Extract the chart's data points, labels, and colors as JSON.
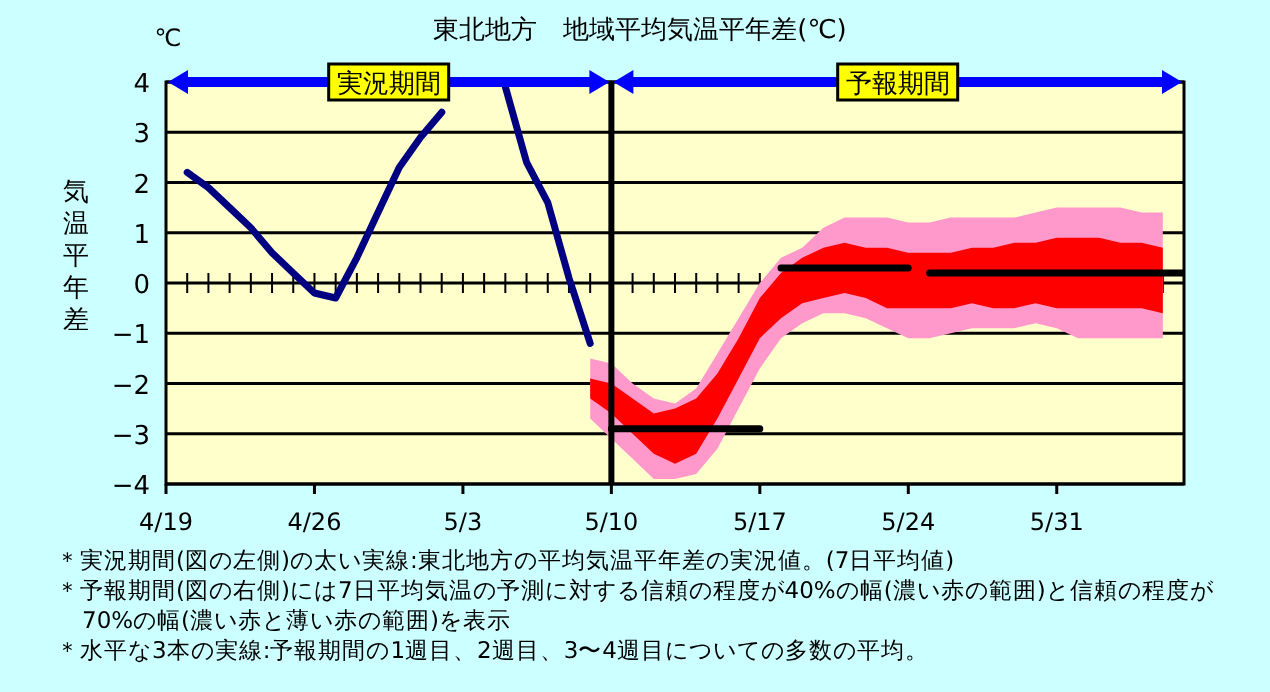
{
  "chart_data": {
    "type": "line",
    "title": "東北地方　地域平均気温平年差(℃)",
    "ylabel": "気温平年差",
    "annotations": [
      "℃",
      "実況期間",
      "予報期間",
      "＊実況期間(図の左側)の太い実線:東北地方の平均気温平年差の実況値。(7日平均値)",
      "＊予報期間(図の右側)には7日平均気温の予測に対する信頼の程度が40%の幅(濃い赤の範囲)と信頼の程度が70%の幅(濃い赤と薄い赤の範囲)を表示",
      "＊水平な3本の実線:予報期間の1週目、2週目、3〜4週目についての多数の平均。"
    ],
    "xlim": [
      "--04-19",
      "--06-06"
    ],
    "xticks": [
      {
        "value": "--04-19",
        "label": "4/19"
      },
      {
        "value": "--04-26",
        "label": "4/26"
      },
      {
        "value": "--05-03",
        "label": "5/3"
      },
      {
        "value": "--05-10",
        "label": "5/10"
      },
      {
        "value": "--05-17",
        "label": "5/17"
      },
      {
        "value": "--05-24",
        "label": "5/24"
      },
      {
        "value": "--05-31",
        "label": "5/31"
      }
    ],
    "ylim": [
      -4,
      4
    ],
    "yticks": [
      -4,
      -3,
      -2,
      -1,
      0,
      1,
      2,
      3,
      4
    ],
    "grid": "y",
    "ref_lines": [
      {
        "axis": "x",
        "value": "--05-10",
        "color": "#000000"
      }
    ],
    "series": [
      {
        "color": "#ff99cc",
        "values": [
          null,
          null,
          null,
          null,
          null,
          null,
          null,
          null,
          null,
          null,
          null,
          null,
          null,
          null,
          null,
          null,
          null,
          null,
          null,
          null,
          null,
          null,
          null,
          null,
          null,
          null,
          null,
          null
        ],
        "x": [
          "--05-09",
          "--05-10",
          "--05-11",
          "--05-12",
          "--05-13",
          "--05-14",
          "--05-15",
          "--05-16",
          "--05-17",
          "--05-18",
          "--05-19",
          "--05-20",
          "--05-21",
          "--05-22",
          "--05-23",
          "--05-24",
          "--05-25",
          "--05-26",
          "--05-27",
          "--05-28",
          "--05-29",
          "--05-30",
          "--05-31",
          "--06-01",
          "--06-02",
          "--06-03",
          "--06-04",
          "--06-05"
        ],
        "upper": [
          -1.5,
          -1.6,
          -2.0,
          -2.3,
          -2.4,
          -2.1,
          -1.4,
          -0.7,
          0.0,
          0.5,
          0.7,
          1.1,
          1.3,
          1.3,
          1.3,
          1.2,
          1.2,
          1.3,
          1.3,
          1.3,
          1.3,
          1.4,
          1.5,
          1.5,
          1.5,
          1.5,
          1.4,
          1.4
        ],
        "lower": [
          -2.7,
          -3.1,
          -3.5,
          -3.9,
          -3.9,
          -3.8,
          -3.3,
          -2.5,
          -1.7,
          -1.1,
          -0.8,
          -0.6,
          -0.6,
          -0.7,
          -0.9,
          -1.1,
          -1.1,
          -1.0,
          -0.9,
          -0.9,
          -0.9,
          -0.8,
          -0.9,
          -1.1,
          -1.1,
          -1.1,
          -1.1,
          -1.1
        ]
      },
      {
        "color": "#ff0000",
        "values": [
          null,
          null,
          null,
          null,
          null,
          null,
          null,
          null,
          null,
          null,
          null,
          null,
          null,
          null,
          null,
          null,
          null,
          null,
          null,
          null,
          null,
          null,
          null,
          null,
          null,
          null,
          null,
          null
        ],
        "x": [
          "--05-09",
          "--05-10",
          "--05-11",
          "--05-12",
          "--05-13",
          "--05-14",
          "--05-15",
          "--05-16",
          "--05-17",
          "--05-18",
          "--05-19",
          "--05-20",
          "--05-21",
          "--05-22",
          "--05-23",
          "--05-24",
          "--05-25",
          "--05-26",
          "--05-27",
          "--05-28",
          "--05-29",
          "--05-30",
          "--05-31",
          "--06-01",
          "--06-02",
          "--06-03",
          "--06-04",
          "--06-05"
        ],
        "upper": [
          -1.9,
          -2.0,
          -2.3,
          -2.6,
          -2.5,
          -2.3,
          -1.8,
          -1.1,
          -0.3,
          0.2,
          0.5,
          0.7,
          0.8,
          0.7,
          0.7,
          0.6,
          0.6,
          0.6,
          0.7,
          0.7,
          0.8,
          0.8,
          0.9,
          0.9,
          0.9,
          0.8,
          0.8,
          0.7
        ],
        "lower": [
          -2.3,
          -2.6,
          -3.0,
          -3.4,
          -3.6,
          -3.4,
          -2.7,
          -1.9,
          -1.1,
          -0.7,
          -0.4,
          -0.3,
          -0.2,
          -0.3,
          -0.5,
          -0.5,
          -0.5,
          -0.5,
          -0.4,
          -0.5,
          -0.5,
          -0.4,
          -0.5,
          -0.5,
          -0.5,
          -0.5,
          -0.5,
          -0.6
        ]
      },
      {
        "color": "#000080",
        "x": [
          "--04-20",
          "--04-21",
          "--04-22",
          "--04-23",
          "--04-24",
          "--04-25",
          "--04-26",
          "--04-27",
          "--04-28",
          "--04-29",
          "--04-30",
          "--05-01",
          "--05-02",
          "--05-03",
          "--05-04",
          "--05-05",
          "--05-06",
          "--05-07",
          "--05-08",
          "--05-09"
        ],
        "values": [
          2.2,
          1.9,
          1.5,
          1.1,
          0.6,
          0.2,
          -0.2,
          -0.3,
          0.5,
          1.4,
          2.3,
          2.9,
          3.4,
          null,
          null,
          3.9,
          2.4,
          1.6,
          0.1,
          -1.2
        ]
      },
      {
        "color": "#000000",
        "x": [
          "--05-10",
          "--05-17"
        ],
        "values": [
          -2.9,
          -2.9
        ]
      },
      {
        "color": "#000000",
        "x": [
          "--05-18",
          "--05-24"
        ],
        "values": [
          0.3,
          0.3
        ]
      },
      {
        "color": "#000000",
        "x": [
          "--05-25",
          "--06-06"
        ],
        "values": [
          0.2,
          0.2
        ]
      }
    ]
  }
}
